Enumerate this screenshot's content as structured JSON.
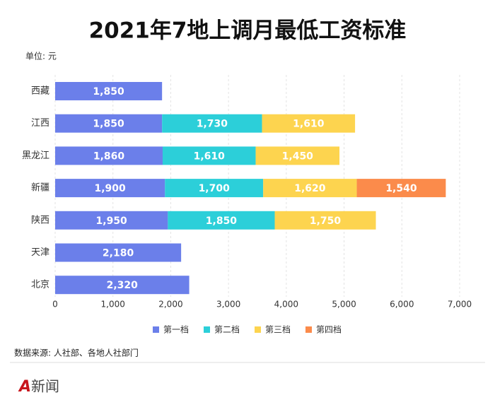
{
  "chart_data": {
    "type": "stacked-bar-horizontal",
    "title": "2021年7地上调月最低工资标准",
    "unit": "单位: 元",
    "source": "数据来源: 人社部、各地人社部门",
    "logo": "新闻",
    "categories": [
      "西藏",
      "江西",
      "黑龙江",
      "新疆",
      "陕西",
      "天津",
      "北京"
    ],
    "series": [
      {
        "name": "第一档",
        "color": "#6b7fea",
        "values": [
          1850,
          1850,
          1860,
          1900,
          1950,
          2180,
          2320
        ],
        "value_labels": [
          "1,850",
          "1,850",
          "1,860",
          "1,900",
          "1,950",
          "2,180",
          "2,320"
        ]
      },
      {
        "name": "第二档",
        "color": "#2ccfd9",
        "values": [
          null,
          1730,
          1610,
          1700,
          1850,
          null,
          null
        ],
        "value_labels": [
          null,
          "1,730",
          "1,610",
          "1,700",
          "1,850",
          null,
          null
        ]
      },
      {
        "name": "第三档",
        "color": "#fdd44f",
        "values": [
          null,
          1610,
          1450,
          1620,
          1750,
          null,
          null
        ],
        "value_labels": [
          null,
          "1,610",
          "1,450",
          "1,620",
          "1,750",
          null,
          null
        ]
      },
      {
        "name": "第四档",
        "color": "#fb8b4b",
        "values": [
          null,
          null,
          null,
          1540,
          null,
          null,
          null
        ],
        "value_labels": [
          null,
          null,
          null,
          "1,540",
          null,
          null,
          null
        ]
      }
    ],
    "xlim": [
      0,
      7000
    ],
    "xticks": [
      0,
      {
        "value": 1000,
        "label": "1,000"
      },
      {
        "value": 2000,
        "label": "2,000"
      },
      {
        "value": 3000,
        "label": "3,000"
      },
      {
        "value": 4000,
        "label": "4,000"
      },
      {
        "value": 5000,
        "label": "5,000"
      },
      {
        "value": 6000,
        "label": "6,000"
      },
      {
        "value": 7000,
        "label": "7,000"
      }
    ],
    "grid": true,
    "legend": "bottom"
  }
}
